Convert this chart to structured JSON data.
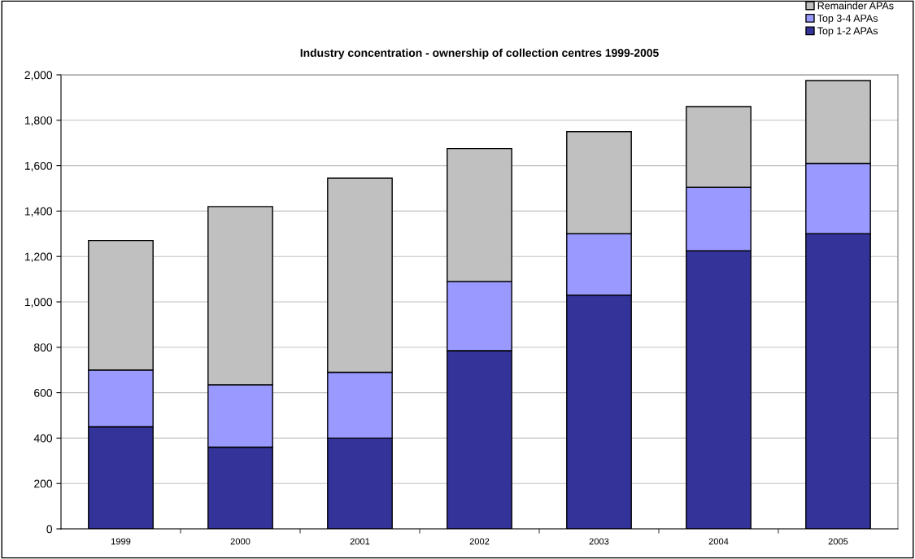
{
  "chart_data": {
    "type": "bar",
    "title": "Industry concentration - ownership of collection centres 1999-2005",
    "categories": [
      "1999",
      "2000",
      "2001",
      "2002",
      "2003",
      "2004",
      "2005"
    ],
    "stacked": true,
    "series": [
      {
        "name": "Top 1-2 APAs",
        "color": "#333399",
        "values": [
          450,
          360,
          400,
          785,
          1030,
          1225,
          1300
        ]
      },
      {
        "name": "Top 3-4 APAs",
        "color": "#9999ff",
        "values": [
          250,
          275,
          290,
          305,
          270,
          280,
          310
        ]
      },
      {
        "name": "Remainder APAs",
        "color": "#c0c0c0",
        "values": [
          570,
          785,
          855,
          585,
          450,
          355,
          365
        ]
      }
    ],
    "ylim": [
      0,
      2000
    ],
    "yticks": [
      {
        "value": 0,
        "label": "0"
      },
      {
        "value": 200,
        "label": "200"
      },
      {
        "value": 400,
        "label": "400"
      },
      {
        "value": 600,
        "label": "600"
      },
      {
        "value": 800,
        "label": "800"
      },
      {
        "value": 1000,
        "label": "1,000"
      },
      {
        "value": 1200,
        "label": "1,200"
      },
      {
        "value": 1400,
        "label": "1,400"
      },
      {
        "value": 1600,
        "label": "1,600"
      },
      {
        "value": 1800,
        "label": "1,800"
      },
      {
        "value": 2000,
        "label": "2,000"
      }
    ],
    "grid": "y",
    "legend": "top right"
  }
}
